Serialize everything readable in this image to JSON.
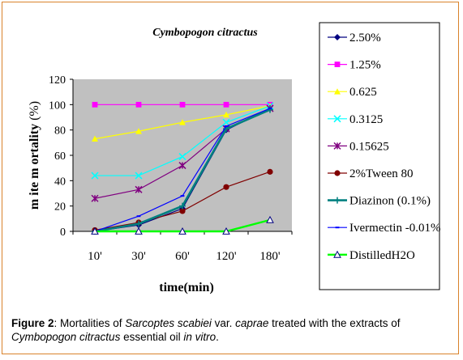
{
  "chart_data": {
    "type": "line",
    "title": "Cymbopogon citractus",
    "xlabel": "time(min)",
    "ylabel": "m ite m ortality (%)",
    "ylabel_parts": [
      "m ite m ortality ",
      "(%)"
    ],
    "categories": [
      "10'",
      "30'",
      "60'",
      "120'",
      "180'"
    ],
    "ylim": [
      0,
      120
    ],
    "yticks": [
      0,
      20,
      40,
      60,
      80,
      100,
      120
    ],
    "grid": false,
    "legend_position": "right",
    "plot_background": "#c0c0c0",
    "series": [
      {
        "name": "2.50%",
        "color": "#000080",
        "marker": "diamond",
        "values": [
          0,
          5,
          18,
          80,
          97
        ]
      },
      {
        "name": "1.25%",
        "color": "#ff00ff",
        "marker": "square",
        "values": [
          100,
          100,
          100,
          100,
          100
        ]
      },
      {
        "name": "0.625",
        "color": "#ffff00",
        "marker": "triangle",
        "values": [
          73,
          79,
          86,
          92,
          99
        ]
      },
      {
        "name": "0.3125",
        "color": "#00ffff",
        "marker": "x",
        "values": [
          44,
          44,
          59,
          86,
          99
        ]
      },
      {
        "name": "0.15625",
        "color": "#800080",
        "marker": "star",
        "values": [
          26,
          33,
          52,
          81,
          97
        ]
      },
      {
        "name": "2%Tween 80",
        "color": "#800000",
        "marker": "circle",
        "values": [
          1,
          7,
          16,
          35,
          47
        ]
      },
      {
        "name": "Diazinon (0.1%)",
        "color": "#008080",
        "marker": "plus",
        "values": [
          0,
          6,
          20,
          81,
          96
        ]
      },
      {
        "name": "Ivermectin -0.01%",
        "color": "#0000ff",
        "marker": "dash",
        "values": [
          0,
          12,
          28,
          83,
          97
        ]
      },
      {
        "name": "DistilledH2O",
        "color": "#00ff00",
        "marker": "open-triangle",
        "values": [
          0,
          0,
          0,
          0,
          9
        ]
      }
    ]
  },
  "caption": {
    "label": "Figure 2",
    "text1": ": Mortalities of ",
    "species": "Sarcoptes scabiei",
    "text2": " var. ",
    "variety": "caprae",
    "text3": " treated with the extracts of ",
    "plant": "Cymbopogon citractus",
    "text4": " essential oil ",
    "invitro": "in vitro",
    "text5": "."
  }
}
